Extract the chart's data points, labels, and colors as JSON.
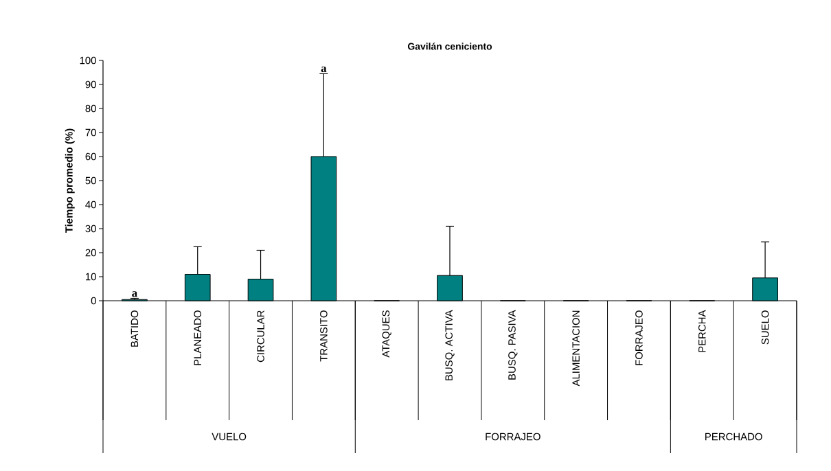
{
  "chart_data": {
    "type": "bar",
    "title": "Gavilán ceniciento",
    "ylabel": "Tiempo promedio (%)",
    "categories": [
      "BATIDO",
      "PLANEADO",
      "CIRCULAR",
      "TRANSITO",
      "ATAQUES",
      "BUSQ. ACTIVA",
      "BUSQ. PASIVA",
      "ALIMENTACION",
      "FORRAJEO",
      "PERCHA",
      "SUELO"
    ],
    "values": [
      0.5,
      11,
      9,
      60,
      0,
      10.5,
      0,
      0,
      0,
      0,
      9.5
    ],
    "errors": [
      [
        0.5,
        1
      ],
      [
        11,
        22.5
      ],
      [
        9,
        21
      ],
      [
        60,
        94.5
      ],
      null,
      [
        10.5,
        31
      ],
      null,
      null,
      null,
      null,
      [
        9.5,
        24.5
      ]
    ],
    "color": "#008080",
    "ylim": [
      0,
      100
    ],
    "yticks": [
      0,
      10,
      20,
      30,
      40,
      50,
      60,
      70,
      80,
      90,
      100
    ],
    "annotations": [
      {
        "text": "a",
        "x": "BATIDO",
        "y": 1
      },
      {
        "text": "a",
        "x": "TRANSITO",
        "y": 94.5
      },
      "VUELO",
      "FORRAJEO",
      "PERCHADO"
    ]
  }
}
